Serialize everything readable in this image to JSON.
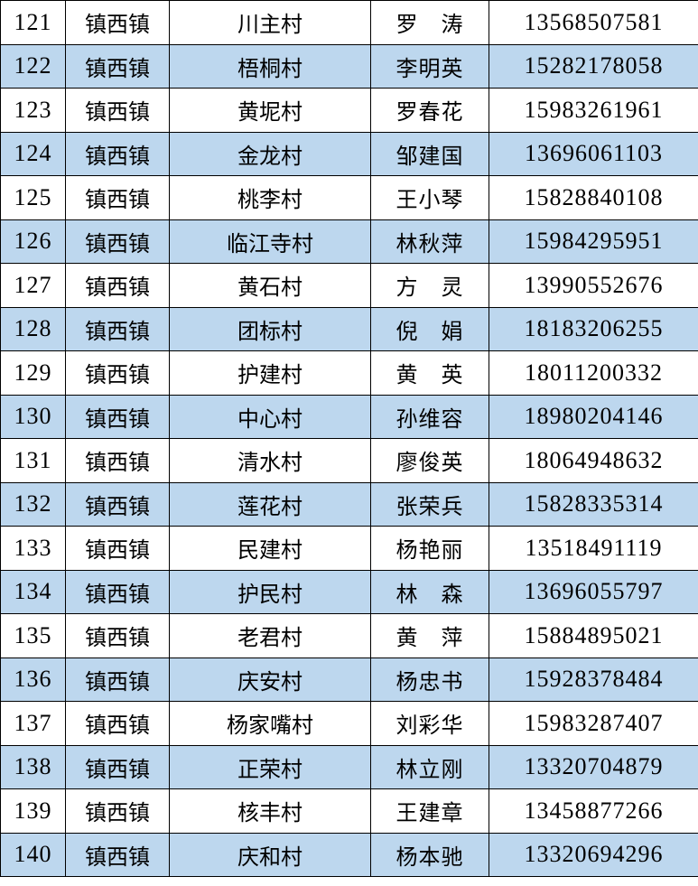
{
  "colors": {
    "alt_row": "#BDD7EE",
    "row": "#FFFFFF",
    "border": "#000000"
  },
  "rows": [
    {
      "no": "121",
      "town": "镇西镇",
      "village": "川主村",
      "name": "罗　涛",
      "phone": "13568507581"
    },
    {
      "no": "122",
      "town": "镇西镇",
      "village": "梧桐村",
      "name": "李明英",
      "phone": "15282178058"
    },
    {
      "no": "123",
      "town": "镇西镇",
      "village": "黄坭村",
      "name": "罗春花",
      "phone": "15983261961"
    },
    {
      "no": "124",
      "town": "镇西镇",
      "village": "金龙村",
      "name": "邹建国",
      "phone": "13696061103"
    },
    {
      "no": "125",
      "town": "镇西镇",
      "village": "桃李村",
      "name": "王小琴",
      "phone": "15828840108"
    },
    {
      "no": "126",
      "town": "镇西镇",
      "village": "临江寺村",
      "name": "林秋萍",
      "phone": "15984295951"
    },
    {
      "no": "127",
      "town": "镇西镇",
      "village": "黄石村",
      "name": "方　灵",
      "phone": "13990552676"
    },
    {
      "no": "128",
      "town": "镇西镇",
      "village": "团标村",
      "name": "倪　娟",
      "phone": "18183206255"
    },
    {
      "no": "129",
      "town": "镇西镇",
      "village": "护建村",
      "name": "黄　英",
      "phone": "18011200332"
    },
    {
      "no": "130",
      "town": "镇西镇",
      "village": "中心村",
      "name": "孙维容",
      "phone": "18980204146"
    },
    {
      "no": "131",
      "town": "镇西镇",
      "village": "清水村",
      "name": "廖俊英",
      "phone": "18064948632"
    },
    {
      "no": "132",
      "town": "镇西镇",
      "village": "莲花村",
      "name": "张荣兵",
      "phone": "15828335314"
    },
    {
      "no": "133",
      "town": "镇西镇",
      "village": "民建村",
      "name": "杨艳丽",
      "phone": "13518491119"
    },
    {
      "no": "134",
      "town": "镇西镇",
      "village": "护民村",
      "name": "林　森",
      "phone": "13696055797"
    },
    {
      "no": "135",
      "town": "镇西镇",
      "village": "老君村",
      "name": "黄　萍",
      "phone": "15884895021"
    },
    {
      "no": "136",
      "town": "镇西镇",
      "village": "庆安村",
      "name": "杨忠书",
      "phone": "15928378484"
    },
    {
      "no": "137",
      "town": "镇西镇",
      "village": "杨家嘴村",
      "name": "刘彩华",
      "phone": "15983287407"
    },
    {
      "no": "138",
      "town": "镇西镇",
      "village": "正荣村",
      "name": "林立刚",
      "phone": "13320704879"
    },
    {
      "no": "139",
      "town": "镇西镇",
      "village": "核丰村",
      "name": "王建章",
      "phone": "13458877266"
    },
    {
      "no": "140",
      "town": "镇西镇",
      "village": "庆和村",
      "name": "杨本驰",
      "phone": "13320694296"
    }
  ]
}
